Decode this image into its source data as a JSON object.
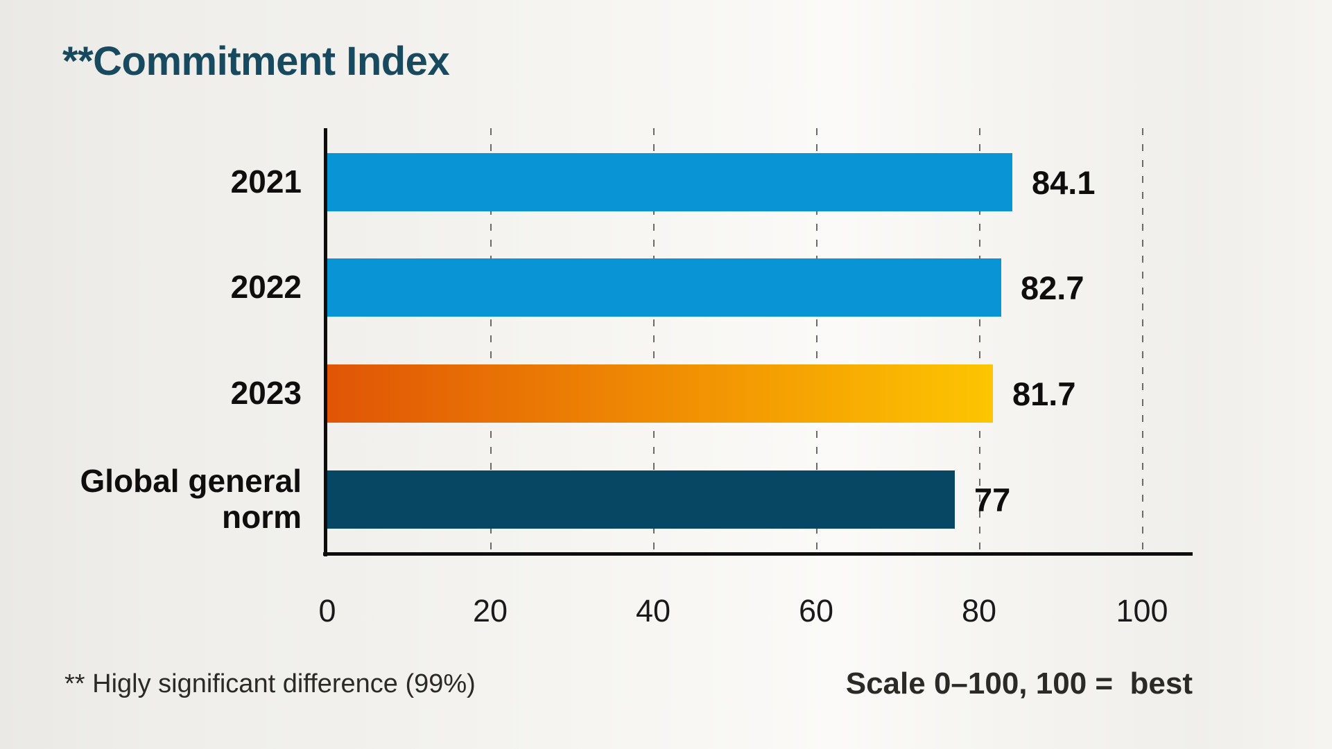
{
  "title": {
    "text": "**Commitment Index",
    "color": "#17495f"
  },
  "footnotes": {
    "left": "** Higly significant difference (99%)",
    "right": "Scale 0–100, 100 =  best"
  },
  "chart_data": {
    "type": "bar",
    "orientation": "horizontal",
    "title": "**Commitment Index",
    "xlabel": "",
    "ylabel": "",
    "xlim": [
      0,
      100
    ],
    "x_ticks": [
      0,
      20,
      40,
      60,
      80,
      100
    ],
    "grid": "vertical dashed gridlines at 20, 40, 60, 80, 100",
    "legend": "none",
    "scale_note": "Scale 0–100, 100 = best",
    "categories": [
      "2021",
      "2022",
      "2023",
      "Global general norm"
    ],
    "values": [
      84.1,
      82.7,
      81.7,
      77
    ],
    "bars": [
      {
        "label": "2021",
        "value": 84.1,
        "display": "84.1",
        "color": "#0994d6"
      },
      {
        "label": "2022",
        "value": 82.7,
        "display": "82.7",
        "color": "#0994d6"
      },
      {
        "label": "2023",
        "value": 81.7,
        "display": "81.7",
        "gradient": [
          "#e05506",
          "#f08c03",
          "#fdc502"
        ]
      },
      {
        "label": "Global general\nnorm",
        "value": 77,
        "display": "77",
        "color": "#084763"
      }
    ],
    "colors": {
      "bar_blue": "#0994d6",
      "bar_gradient_start": "#e05506",
      "bar_gradient_end": "#fdc502",
      "bar_teal": "#084763",
      "axis": "#0d0d0d",
      "gridline": "#6a6a6a",
      "title_text": "#17495f",
      "label_text": "#0f0e0c"
    }
  }
}
